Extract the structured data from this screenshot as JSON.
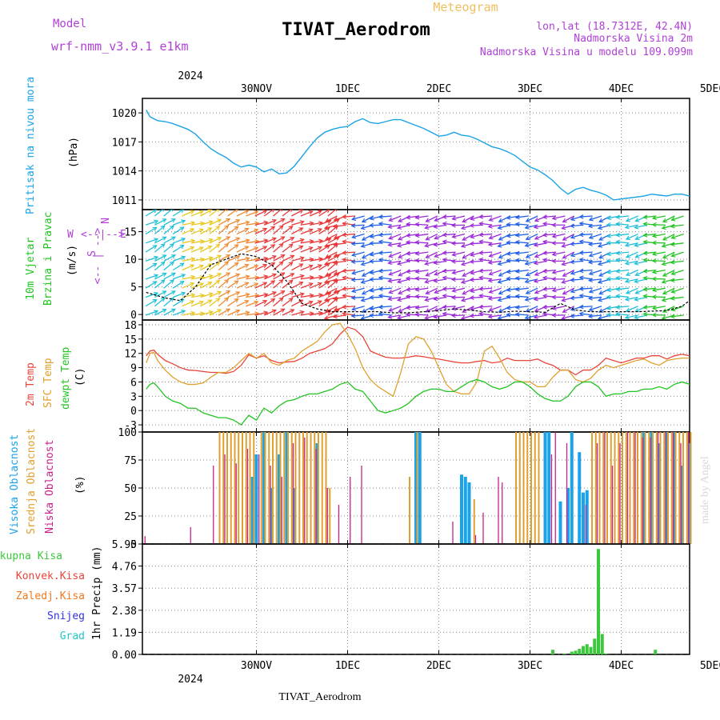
{
  "header": {
    "model_label": "Model",
    "model_name": "wrf-nmm_v3.9.1 e1km",
    "product": "Meteogram",
    "station": "TIVAT_Aerodrom",
    "coords": "lon,lat (18.7312E, 42.4N)",
    "elevation": "Nadmorska Visina 2m",
    "model_elevation": "Nadmorska Visina u modelu 109.099m",
    "footer_station": "TIVAT_Aerodrom",
    "watermark": "made by Angel"
  },
  "time_axis": {
    "year": "2024",
    "day_labels": [
      "30NOV",
      "1DEC",
      "2DEC",
      "3DEC",
      "4DEC",
      "5DEC"
    ]
  },
  "colors": {
    "pressure": "#1aa3e8",
    "temp2m": "#e8453a",
    "sfc_temp": "#e0a030",
    "dewpt": "#22c422",
    "cloud_high": "#1aa3e8",
    "cloud_mid": "#e0a030",
    "cloud_low": "#c8208c",
    "precip_total": "#3cc83c",
    "precip_conv": "#e8453a",
    "precip_frz": "#f07820",
    "snow": "#3030e0",
    "graupel": "#20c8c8",
    "wind_purple": "#9a28d8",
    "wind_blue": "#2060e8",
    "wind_cyan": "#20c0d8",
    "wind_green": "#22c422",
    "wind_yellow": "#e8c820",
    "wind_orange": "#f08830",
    "wind_red": "#e83838"
  },
  "panels": {
    "pressure": {
      "label": "Pritisak na nivou mora",
      "unit": "(hPa)"
    },
    "wind": {
      "label1": "10m Vjetar",
      "label2": "Brzina i Pravac",
      "unit": "(m/s)",
      "compass_top": "N",
      "compass_mid": "<-- | -->",
      "compass_bottom": "S",
      "compass_left": "W",
      "compass_right": "E"
    },
    "temp": {
      "label_2m": "2m Temp",
      "label_sfc": "SFC Temp",
      "label_dew": "dewpt Temp",
      "unit": "(C)"
    },
    "cloud": {
      "label_high": "Visoka Oblacnost",
      "label_mid": "Srednja Oblacnost",
      "label_low": "Niska Oblacnost",
      "unit": "(%)"
    },
    "precip": {
      "label_total": "Ukupna Kisa",
      "label_conv": "Konvek.Kisa",
      "label_frz": "Zaledj.Kisa",
      "label_snow": "Snijeg",
      "label_grad": "Grad",
      "unit": "1hr Precip (mm)"
    }
  },
  "chart_data": [
    {
      "type": "line",
      "name": "pressure",
      "x_unit": "hours since 29NOV 00Z",
      "ylim": [
        1010,
        1021.5
      ],
      "yticks": [
        1011,
        1014,
        1017,
        1020
      ],
      "grid": true,
      "x": [
        19,
        20,
        22,
        24,
        26,
        28,
        30,
        32,
        34,
        36,
        38,
        40,
        42,
        44,
        46,
        48,
        50,
        52,
        54,
        56,
        58,
        60,
        62,
        64,
        66,
        68,
        70,
        72,
        74,
        76,
        78,
        80,
        82,
        84,
        86,
        88,
        90,
        92,
        94,
        96,
        98,
        100,
        102,
        104,
        106,
        108,
        110,
        112,
        114,
        116,
        118,
        120,
        122,
        124,
        126,
        128,
        130,
        132,
        134,
        136,
        138,
        140,
        142,
        144,
        146,
        148,
        150,
        152,
        154,
        156,
        158,
        160,
        162
      ],
      "values": [
        1020.3,
        1019.6,
        1019.2,
        1019.1,
        1018.9,
        1018.6,
        1018.3,
        1017.8,
        1017.0,
        1016.3,
        1015.8,
        1015.4,
        1014.8,
        1014.4,
        1014.6,
        1014.4,
        1013.9,
        1014.2,
        1013.7,
        1013.8,
        1014.5,
        1015.5,
        1016.5,
        1017.4,
        1018.0,
        1018.3,
        1018.5,
        1018.6,
        1019.1,
        1019.4,
        1019.0,
        1018.9,
        1019.1,
        1019.3,
        1019.3,
        1019.0,
        1018.7,
        1018.4,
        1018.0,
        1017.6,
        1017.7,
        1018.0,
        1017.7,
        1017.6,
        1017.3,
        1016.9,
        1016.5,
        1016.3,
        1016.0,
        1015.6,
        1015.0,
        1014.4,
        1014.1,
        1013.6,
        1013.0,
        1012.2,
        1011.6,
        1012.1,
        1012.3,
        1012.0,
        1011.8,
        1011.5,
        1011.0,
        1011.1,
        1011.2,
        1011.3,
        1011.4,
        1011.6,
        1011.5,
        1011.4,
        1011.6,
        1011.6,
        1011.4
      ]
    },
    {
      "type": "line",
      "name": "wind_speed",
      "x_unit": "hours since 29NOV 00Z",
      "ylim": [
        -1,
        19
      ],
      "yticks": [
        0,
        5,
        10,
        15
      ],
      "grid": true,
      "x": [
        19,
        24,
        28,
        32,
        36,
        40,
        44,
        48,
        52,
        56,
        60,
        64,
        68,
        72,
        76,
        80,
        84,
        88,
        92,
        96,
        100,
        104,
        108,
        112,
        116,
        120,
        124,
        128,
        132,
        136,
        140,
        144,
        148,
        152,
        156,
        160,
        162
      ],
      "values": [
        4,
        3,
        2.5,
        5,
        9,
        10,
        11,
        10.5,
        9,
        6,
        2,
        1,
        0.5,
        0.5,
        0.5,
        0.5,
        0.3,
        0.3,
        0.5,
        0.7,
        1.0,
        0.8,
        0.5,
        0.4,
        0.6,
        0.5,
        0.4,
        2,
        0.8,
        0.5,
        0.5,
        0.5,
        0.5,
        0.6,
        0.7,
        1.5,
        2.5
      ],
      "arrow_colors_by_segment": [
        "cyan",
        "yellow",
        "orange",
        "red",
        "red",
        "red",
        "blue",
        "purple",
        "purple",
        "purple",
        "blue",
        "purple",
        "blue",
        "cyan",
        "green"
      ]
    },
    {
      "type": "line",
      "name": "temperature",
      "x_unit": "hours since 29NOV 00Z",
      "ylim": [
        -4.5,
        19
      ],
      "yticks": [
        -3,
        0,
        3,
        6,
        9,
        12,
        15,
        18
      ],
      "grid": true,
      "x": [
        19,
        20,
        21,
        22,
        24,
        26,
        28,
        30,
        32,
        34,
        36,
        38,
        40,
        42,
        44,
        46,
        48,
        50,
        52,
        54,
        56,
        58,
        60,
        62,
        64,
        66,
        68,
        70,
        72,
        74,
        76,
        78,
        80,
        82,
        84,
        86,
        88,
        90,
        92,
        94,
        96,
        98,
        100,
        102,
        104,
        106,
        108,
        110,
        112,
        114,
        116,
        118,
        120,
        122,
        124,
        126,
        128,
        130,
        132,
        134,
        136,
        138,
        140,
        142,
        144,
        146,
        148,
        150,
        152,
        154,
        156,
        158,
        160,
        162
      ],
      "series": [
        {
          "name": "2m Temp",
          "values": [
            11.5,
            12.5,
            12.7,
            11.8,
            10.5,
            9.8,
            9.0,
            8.5,
            8.4,
            8.2,
            8.0,
            8.0,
            7.8,
            8.2,
            9.5,
            11.7,
            11.0,
            11.5,
            10.5,
            10.0,
            10.2,
            10.3,
            11.0,
            12.0,
            12.5,
            13.0,
            14.0,
            16.0,
            17.5,
            17.0,
            15.5,
            12.5,
            11.8,
            11.2,
            11.0,
            11.0,
            11.2,
            11.5,
            11.3,
            11.0,
            10.8,
            10.5,
            10.2,
            10.0,
            10.0,
            10.3,
            10.5,
            10.0,
            10.2,
            11.0,
            10.5,
            10.5,
            10.5,
            10.8,
            10.0,
            9.5,
            8.5,
            8.5,
            7.5,
            8.5,
            8.5,
            9.5,
            11.0,
            10.5,
            10.0,
            10.5,
            11.0,
            11.0,
            11.5,
            11.5,
            10.8,
            11.5,
            11.8,
            11.5
          ]
        },
        {
          "name": "SFC Temp",
          "values": [
            10.0,
            12.0,
            12.2,
            10.5,
            8.5,
            7.0,
            6.0,
            5.5,
            5.5,
            5.8,
            7.0,
            8.0,
            8.0,
            9.0,
            10.5,
            12.0,
            11.0,
            12.0,
            10.0,
            9.5,
            10.5,
            11.0,
            12.5,
            13.5,
            14.5,
            16.5,
            18.0,
            18.3,
            16.0,
            13.0,
            9.0,
            6.5,
            5.0,
            4.0,
            3.0,
            8.0,
            14.0,
            15.5,
            15.0,
            12.5,
            9.0,
            5.5,
            4.0,
            3.5,
            3.5,
            6.0,
            12.5,
            13.5,
            11.0,
            8.0,
            6.5,
            6.0,
            6.0,
            5.0,
            5.0,
            7.0,
            8.5,
            8.5,
            6.5,
            6.0,
            6.8,
            8.5,
            9.5,
            9.0,
            9.5,
            10.0,
            10.5,
            10.8,
            10.0,
            9.5,
            10.5,
            10.8,
            11.0,
            11.0
          ]
        },
        {
          "name": "dewpt Temp",
          "values": [
            4.5,
            5.5,
            5.8,
            5.0,
            3.0,
            2.0,
            1.5,
            0.5,
            0.5,
            -0.5,
            -1.0,
            -1.5,
            -1.5,
            -2.0,
            -3.0,
            -1.0,
            -2.0,
            0.5,
            -0.5,
            1.0,
            2.0,
            2.3,
            3.0,
            3.5,
            3.5,
            4.0,
            4.5,
            5.5,
            6.0,
            4.5,
            4.0,
            2.0,
            0.0,
            -0.5,
            0.0,
            0.5,
            1.5,
            3.0,
            4.0,
            4.5,
            4.5,
            4.0,
            4.0,
            5.0,
            6.0,
            6.5,
            6.0,
            5.0,
            4.5,
            5.0,
            6.0,
            6.0,
            5.0,
            3.5,
            2.5,
            2.0,
            2.0,
            3.0,
            5.0,
            6.0,
            6.0,
            5.0,
            3.0,
            3.5,
            3.5,
            4.0,
            4.0,
            4.5,
            4.5,
            5.0,
            4.5,
            5.5,
            6.0,
            5.5
          ]
        }
      ]
    },
    {
      "type": "bar",
      "name": "cloud_cover",
      "x_unit": "hours since 29NOV 00Z",
      "ylim": [
        0,
        100
      ],
      "yticks": [
        0,
        25,
        50,
        75,
        100
      ],
      "grid": true,
      "series": [
        {
          "name": "Visoka Oblacnost",
          "x": [
            47,
            48,
            50,
            52,
            54,
            56,
            58,
            64,
            90,
            91,
            102,
            103,
            104,
            124,
            125,
            128,
            130,
            131,
            133,
            134,
            135,
            150,
            152,
            154,
            156,
            158,
            160,
            162
          ],
          "values": [
            60,
            80,
            100,
            50,
            80,
            100,
            50,
            90,
            100,
            100,
            62,
            60,
            55,
            100,
            100,
            38,
            50,
            100,
            82,
            46,
            48,
            100,
            100,
            90,
            100,
            100,
            70,
            90
          ]
        },
        {
          "name": "Srednja Oblacnost",
          "x": [
            38,
            39,
            40,
            41,
            42,
            43,
            44,
            45,
            46,
            47,
            49,
            50,
            51,
            52,
            53,
            54,
            55,
            56,
            57,
            58,
            59,
            60,
            61,
            62,
            63,
            64,
            65,
            66,
            67,
            88,
            90,
            105,
            116,
            117,
            118,
            119,
            120,
            121,
            122,
            136,
            137,
            138,
            139,
            140,
            141,
            142,
            143,
            144,
            145,
            146,
            147,
            148,
            149,
            150,
            151,
            152,
            153,
            154,
            155,
            156,
            157,
            158,
            159,
            160,
            161,
            162
          ],
          "values": [
            100,
            100,
            100,
            100,
            100,
            100,
            100,
            100,
            100,
            100,
            100,
            100,
            100,
            100,
            100,
            100,
            100,
            100,
            100,
            100,
            100,
            100,
            100,
            100,
            100,
            100,
            100,
            100,
            50,
            60,
            100,
            40,
            100,
            100,
            100,
            100,
            100,
            100,
            100,
            100,
            100,
            100,
            100,
            100,
            100,
            100,
            100,
            100,
            100,
            100,
            100,
            100,
            100,
            100,
            100,
            100,
            100,
            100,
            100,
            100,
            100,
            100,
            100,
            100,
            100,
            100
          ]
        },
        {
          "name": "Niska Oblacnost",
          "x": [
            19,
            31,
            37,
            40,
            43,
            46,
            49,
            52,
            55,
            58,
            61,
            64,
            67,
            70,
            73,
            76,
            100,
            106,
            108,
            112,
            113,
            126,
            127,
            130,
            135,
            138,
            140,
            142,
            144,
            146,
            148,
            150,
            152,
            154,
            156,
            158,
            160,
            162
          ],
          "values": [
            7,
            15,
            70,
            80,
            72,
            85,
            80,
            70,
            60,
            90,
            95,
            85,
            50,
            35,
            60,
            70,
            20,
            8,
            28,
            60,
            55,
            80,
            100,
            90,
            35,
            90,
            100,
            70,
            90,
            100,
            100,
            95,
            95,
            100,
            100,
            100,
            90,
            100
          ]
        }
      ]
    },
    {
      "type": "bar",
      "name": "precipitation",
      "x_unit": "hours since 29NOV 00Z",
      "ylim": [
        0,
        5.95
      ],
      "yticks": [
        0,
        1.19,
        2.38,
        3.57,
        4.76,
        5.95
      ],
      "grid": true,
      "series": [
        {
          "name": "Ukupna Kisa",
          "x": [
            126,
            129,
            131,
            132,
            133,
            134,
            135,
            136,
            137,
            138,
            139,
            140,
            153
          ],
          "values": [
            0.25,
            0.05,
            0.15,
            0.2,
            0.3,
            0.45,
            0.55,
            0.4,
            0.85,
            5.68,
            1.1,
            0.05,
            0.25
          ]
        }
      ]
    }
  ]
}
